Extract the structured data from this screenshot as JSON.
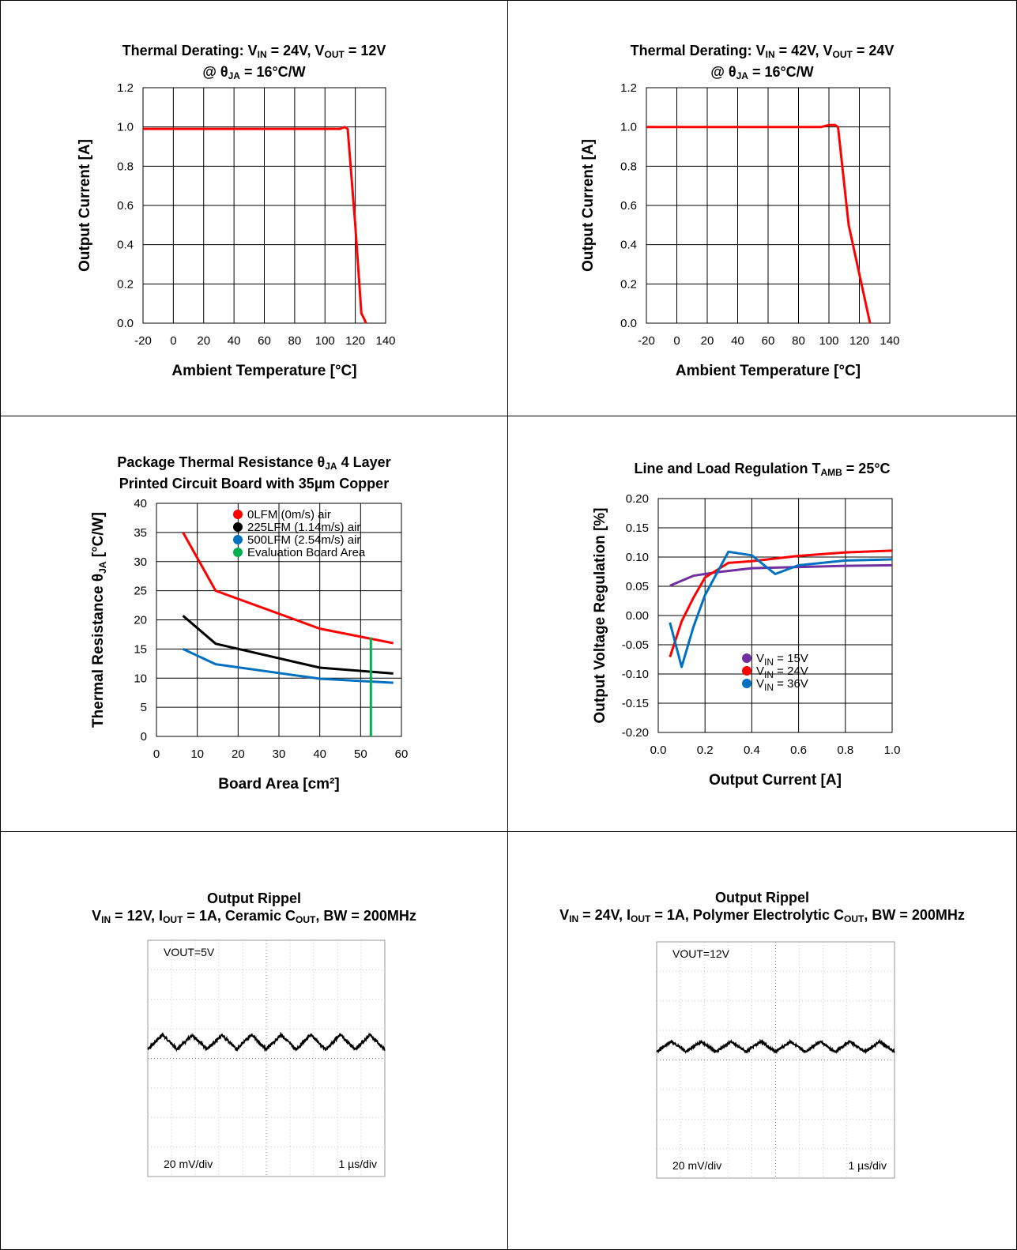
{
  "colors": {
    "red": "#ff0000",
    "black": "#000000",
    "blue": "#0070c0",
    "green": "#00b050",
    "purple": "#7030a0"
  },
  "chart_data": [
    {
      "id": "c1",
      "type": "line",
      "title": {
        "line1_parts": [
          "Thermal Derating: V",
          "IN",
          " = 24V, V",
          "OUT",
          " = 12V"
        ],
        "line2_parts": [
          "@ θ",
          "JA",
          " = 16°C/W"
        ]
      },
      "xlabel": "Ambient Temperature [°C]",
      "ylabel": "Output Current [A]",
      "xlim": [
        -20,
        140
      ],
      "ylim": [
        0,
        1.2
      ],
      "xticks": [
        -20,
        0,
        20,
        40,
        60,
        80,
        100,
        120,
        140
      ],
      "yticks": [
        "0.0",
        "0.2",
        "0.4",
        "0.6",
        "0.8",
        "1.0",
        "1.2"
      ],
      "grid": true,
      "series": [
        {
          "color": "#ff0000",
          "x": [
            -20,
            -10,
            0,
            50,
            100,
            110,
            113,
            115,
            120,
            124,
            126,
            127
          ],
          "y": [
            0.99,
            0.99,
            0.99,
            0.99,
            0.99,
            0.99,
            1.0,
            0.99,
            0.5,
            0.05,
            0.02,
            0.0
          ]
        }
      ]
    },
    {
      "id": "c2",
      "type": "line",
      "title": {
        "line1_parts": [
          "Thermal Derating: V",
          "IN",
          " = 42V, V",
          "OUT",
          " = 24V"
        ],
        "line2_parts": [
          "@ θ",
          "JA",
          " = 16°C/W"
        ]
      },
      "xlabel": "Ambient Temperature [°C]",
      "ylabel": "Output Current [A]",
      "xlim": [
        -20,
        140
      ],
      "ylim": [
        0,
        1.2
      ],
      "xticks": [
        -20,
        0,
        20,
        40,
        60,
        80,
        100,
        120,
        140
      ],
      "yticks": [
        "0.0",
        "0.2",
        "0.4",
        "0.6",
        "0.8",
        "1.0",
        "1.2"
      ],
      "grid": true,
      "series": [
        {
          "color": "#ff0000",
          "x": [
            -20,
            -10,
            0,
            50,
            95,
            100,
            104,
            106,
            113,
            120,
            127
          ],
          "y": [
            1.0,
            1.0,
            1.0,
            1.0,
            1.0,
            1.01,
            1.01,
            1.0,
            0.5,
            0.25,
            0.0
          ]
        }
      ]
    },
    {
      "id": "c3",
      "type": "line",
      "title": {
        "line1_parts": [
          "Package Thermal Resistance θ",
          "JA",
          "  4 Layer"
        ],
        "line2_parts": [
          "Printed Circuit Board with 35µm Copper"
        ]
      },
      "xlabel": "Board Area [cm²]",
      "ylabel_parts": [
        "Thermal Resistance θ",
        "JA",
        " [°C/W]"
      ],
      "xlim": [
        0,
        60
      ],
      "ylim": [
        0,
        40
      ],
      "xticks": [
        0,
        10,
        20,
        30,
        40,
        50,
        60
      ],
      "yticks": [
        "0",
        "5",
        "10",
        "15",
        "20",
        "25",
        "30",
        "35",
        "40"
      ],
      "grid": true,
      "legend_position": "top-center",
      "series": [
        {
          "name": "0LFM (0m/s) air",
          "color": "#ff0000",
          "x": [
            6.5,
            14.5,
            40,
            58
          ],
          "y": [
            35,
            25,
            18.5,
            16
          ]
        },
        {
          "name": "225LFM (1.14m/s) air",
          "color": "#000000",
          "x": [
            6.5,
            14.5,
            40,
            58
          ],
          "y": [
            20.7,
            15.9,
            11.8,
            10.8
          ]
        },
        {
          "name": "500LFM (2.54m/s) air",
          "color": "#0070c0",
          "x": [
            6.5,
            14.5,
            40,
            58
          ],
          "y": [
            15,
            12.4,
            9.9,
            9.2
          ]
        },
        {
          "name": "Evaluation Board Area",
          "color": "#00b050",
          "x": [
            52.5,
            52.5
          ],
          "y": [
            0,
            17
          ]
        }
      ]
    },
    {
      "id": "c4",
      "type": "line",
      "title": {
        "line1_parts": [
          "Line and Load Regulation T",
          "AMB",
          " = 25°C"
        ]
      },
      "xlabel": "Output Current [A]",
      "ylabel": "Output Voltage Regulation [%]",
      "xlim": [
        0,
        1
      ],
      "ylim": [
        -0.2,
        0.2
      ],
      "xticks": [
        "0.0",
        "0.2",
        "0.4",
        "0.6",
        "0.8",
        "1.0"
      ],
      "yticks": [
        "-0.20",
        "-0.15",
        "-0.10",
        "-0.05",
        "0.00",
        "0.05",
        "0.10",
        "0.15",
        "0.20"
      ],
      "grid": true,
      "legend_position": "lower-right",
      "series": [
        {
          "name_parts": [
            "V",
            "IN",
            " = 15V"
          ],
          "color": "#7030a0",
          "x": [
            0.05,
            0.15,
            0.25,
            0.4,
            0.6,
            0.8,
            1.0
          ],
          "y": [
            0.051,
            0.068,
            0.074,
            0.081,
            0.083,
            0.085,
            0.086
          ]
        },
        {
          "name_parts": [
            "V",
            "IN",
            " = 24V"
          ],
          "color": "#ff0000",
          "x": [
            0.05,
            0.1,
            0.15,
            0.2,
            0.3,
            0.4,
            0.6,
            0.8,
            1.0
          ],
          "y": [
            -0.071,
            -0.01,
            0.03,
            0.065,
            0.09,
            0.093,
            0.102,
            0.108,
            0.111
          ]
        },
        {
          "name_parts": [
            "V",
            "IN",
            " = 36V"
          ],
          "color": "#0070c0",
          "x": [
            0.05,
            0.1,
            0.15,
            0.2,
            0.3,
            0.4,
            0.5,
            0.6,
            0.8,
            1.0
          ],
          "y": [
            -0.012,
            -0.088,
            -0.02,
            0.035,
            0.109,
            0.103,
            0.071,
            0.086,
            0.094,
            0.096
          ]
        }
      ]
    },
    {
      "id": "c5",
      "type": "line",
      "title": {
        "line1_parts": [
          "Output Rippel"
        ],
        "line2_parts": [
          "V",
          "IN",
          " = 12V, I",
          "OUT",
          " = 1A, Ceramic C",
          "OUT",
          ", BW = 200MHz"
        ]
      },
      "annotations": {
        "top_left": "VOUT=5V",
        "bottom_left": "20 mV/div",
        "bottom_right": "1 µs/div"
      },
      "grid": {
        "divisions_x": 10,
        "divisions_y": 8
      },
      "series": [
        {
          "color": "#000000",
          "cycles": 8,
          "amplitude_div": 0.5,
          "offset_div": 0.55
        }
      ]
    },
    {
      "id": "c6",
      "type": "line",
      "title": {
        "line1_parts": [
          "Output Rippel"
        ],
        "line2_parts": [
          "V",
          "IN",
          " = 24V, I",
          "OUT",
          " = 1A, Polymer Electrolytic C",
          "OUT",
          ", BW = 200MHz"
        ]
      },
      "annotations": {
        "top_left": "VOUT=12V",
        "bottom_left": "20 mV/div",
        "bottom_right": "1 µs/div"
      },
      "grid": {
        "divisions_x": 10,
        "divisions_y": 8
      },
      "series": [
        {
          "color": "#000000",
          "cycles": 8,
          "amplitude_div": 0.35,
          "offset_div": 0.45
        }
      ]
    }
  ]
}
